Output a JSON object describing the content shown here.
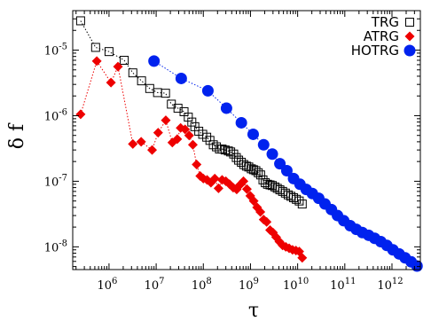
{
  "chart_data": {
    "type": "scatter",
    "xlabel": "τ",
    "ylabel": "δ f",
    "xscale": "log",
    "yscale": "log",
    "xlim": [
      170000,
      4000000000000
    ],
    "ylim": [
      4.5e-09,
      4e-05
    ],
    "legend_position": "top-right",
    "x_ticks": [
      {
        "value": 1000000,
        "mantissa": "10",
        "exp": "6"
      },
      {
        "value": 10000000,
        "mantissa": "10",
        "exp": "7"
      },
      {
        "value": 100000000,
        "mantissa": "10",
        "exp": "8"
      },
      {
        "value": 1000000000,
        "mantissa": "10",
        "exp": "9"
      },
      {
        "value": 10000000000,
        "mantissa": "10",
        "exp": "10"
      },
      {
        "value": 100000000000,
        "mantissa": "10",
        "exp": "11"
      },
      {
        "value": 1000000000000,
        "mantissa": "10",
        "exp": "12"
      }
    ],
    "y_ticks": [
      {
        "value": 1e-08,
        "mantissa": "10",
        "exp": "-8"
      },
      {
        "value": 1e-07,
        "mantissa": "10",
        "exp": "-7"
      },
      {
        "value": 1e-06,
        "mantissa": "10",
        "exp": "-6"
      },
      {
        "value": 1e-05,
        "mantissa": "10",
        "exp": "-5"
      }
    ],
    "series": [
      {
        "name": "TRG",
        "marker": "open-square",
        "color": "#000000",
        "x": [
          250000.0,
          520000.0,
          1000000.0,
          2100000.0,
          3200000.0,
          4900000.0,
          7300000.0,
          10700000.0,
          15800000.0,
          21000000.0,
          29000000.0,
          39000000.0,
          48000000.0,
          57000000.0,
          66000000.0,
          80000000.0,
          97000000.0,
          118000000.0,
          138000000.0,
          163000000.0,
          190000000.0,
          220000000.0,
          250000000.0,
          290000000.0,
          340000000.0,
          380000000.0,
          440000000.0,
          500000000.0,
          560000000.0,
          640000000.0,
          720000000.0,
          820000000.0,
          920000000.0,
          1040000000.0,
          1160000000.0,
          1300000000.0,
          1460000000.0,
          1640000000.0,
          1840000000.0,
          2060000000.0,
          2300000000.0,
          2600000000.0,
          2900000000.0,
          3300000000.0,
          3700000000.0,
          4200000000.0,
          4800000000.0,
          5500000000.0,
          6300000000.0,
          7200000000.0,
          8200000000.0,
          9400000000.0,
          10800000000.0,
          12500000000.0
        ],
        "y": [
          2.8e-05,
          1.1e-05,
          9.5e-06,
          7e-06,
          4.5e-06,
          3.4e-06,
          2.6e-06,
          2.25e-06,
          2.2e-06,
          1.5e-06,
          1.3e-06,
          1.15e-06,
          9.5e-07,
          8e-07,
          6.8e-07,
          5.8e-07,
          5.2e-07,
          4.7e-07,
          4.2e-07,
          3.6e-07,
          3.35e-07,
          3.1e-07,
          3.1e-07,
          3e-07,
          2.9e-07,
          2.8e-07,
          2.6e-07,
          2.3e-07,
          2.1e-07,
          1.95e-07,
          1.8e-07,
          1.7e-07,
          1.65e-07,
          1.55e-07,
          1.5e-07,
          1.45e-07,
          1.35e-07,
          1.25e-07,
          1.05e-07,
          9.5e-08,
          9e-08,
          8.8e-08,
          8.6e-08,
          8.2e-08,
          7.8e-08,
          7.4e-08,
          7e-08,
          6.6e-08,
          6.2e-08,
          5.9e-08,
          5.6e-08,
          5.3e-08,
          5e-08,
          4.5e-08
        ]
      },
      {
        "name": "ATRG",
        "marker": "filled-diamond",
        "color": "#ee0000",
        "x": [
          250000.0,
          550000.0,
          1100000.0,
          1550000.0,
          3200000.0,
          4800000.0,
          8200000.0,
          11000000.0,
          16000000.0,
          22000000.0,
          28000000.0,
          33000000.0,
          41000000.0,
          50000000.0,
          60000000.0,
          72000000.0,
          86000000.0,
          100000000.0,
          120000000.0,
          145000000.0,
          175000000.0,
          210000000.0,
          250000000.0,
          300000000.0,
          360000000.0,
          430000000.0,
          510000000.0,
          600000000.0,
          710000000.0,
          840000000.0,
          990000000.0,
          1170000000.0,
          1380000000.0,
          1620000000.0,
          1900000000.0,
          2200000000.0,
          2600000000.0,
          3000000000.0,
          3500000000.0,
          4100000000.0,
          4800000000.0,
          5600000000.0,
          6600000000.0,
          7800000000.0,
          9200000000.0,
          10800000000.0,
          12500000000.0
        ],
        "y": [
          1.05e-06,
          6.8e-06,
          3.2e-06,
          5.6e-06,
          3.7e-07,
          4e-07,
          3e-07,
          5.5e-07,
          8.5e-07,
          3.9e-07,
          4.4e-07,
          6.5e-07,
          6.2e-07,
          5e-07,
          3.6e-07,
          1.8e-07,
          1.2e-07,
          1.1e-07,
          1.05e-07,
          9.5e-08,
          1.1e-07,
          7.8e-08,
          1.05e-07,
          1e-07,
          9e-08,
          8e-08,
          7.5e-08,
          8.8e-08,
          1e-07,
          7.6e-08,
          6e-08,
          5e-08,
          4e-08,
          3.4e-08,
          2.6e-08,
          2.4e-08,
          1.8e-08,
          1.65e-08,
          1.4e-08,
          1.2e-08,
          1.05e-08,
          1e-08,
          9.5e-09,
          9e-09,
          8.8e-09,
          8.5e-09,
          6.8e-09
        ]
      },
      {
        "name": "HOTRG",
        "marker": "filled-circle",
        "color": "#0022ee",
        "x": [
          9000000.0,
          34000000.0,
          125000000.0,
          310000000.0,
          640000000.0,
          1140000000.0,
          1900000000.0,
          2900000000.0,
          4200000000.0,
          5900000000.0,
          8200000000.0,
          11200000000.0,
          15200000000.0,
          20500000000.0,
          28000000000.0,
          38000000000.0,
          52000000000.0,
          70000000000.0,
          95000000000.0,
          130000000000.0,
          175000000000.0,
          235000000000.0,
          320000000000.0,
          430000000000.0,
          580000000000.0,
          780000000000.0,
          1050000000000.0,
          1420000000000.0,
          1900000000000.0,
          2550000000000.0,
          3400000000000.0
        ],
        "y": [
          6.8e-06,
          3.7e-06,
          2.4e-06,
          1.3e-06,
          7.8e-07,
          5.2e-07,
          3.6e-07,
          2.6e-07,
          1.85e-07,
          1.45e-07,
          1.1e-07,
          9e-08,
          7.5e-08,
          6.5e-08,
          5.5e-08,
          4.5e-08,
          3.7e-08,
          3e-08,
          2.5e-08,
          2.1e-08,
          1.85e-08,
          1.65e-08,
          1.5e-08,
          1.35e-08,
          1.2e-08,
          1.05e-08,
          9e-09,
          7.8e-09,
          6.8e-09,
          5.9e-09,
          5.1e-09
        ]
      }
    ]
  }
}
